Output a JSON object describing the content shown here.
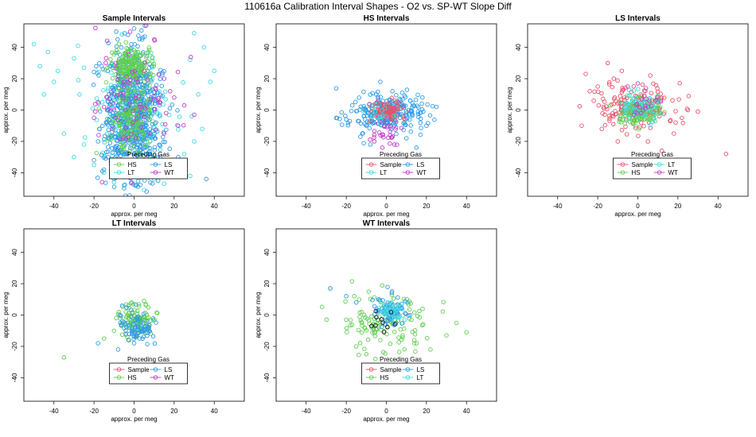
{
  "page_title": "110616a   Calibration Interval Shapes - O2 vs. SP-WT Slope Diff",
  "colors": {
    "Sample": "#e8536b",
    "HS": "#5fcf52",
    "LS": "#2f9be6",
    "LT": "#3fd9e3",
    "WT": "#c43cc9",
    "Other": "#111111"
  },
  "chart_data": [
    {
      "type": "scatter",
      "title": "Sample Intervals",
      "xlabel": "approx. per meg",
      "ylabel": "approx. per meg",
      "xlim": [
        -55,
        55
      ],
      "ylim": [
        -55,
        55
      ],
      "xticks": [
        -40,
        -20,
        0,
        20,
        40
      ],
      "yticks": [
        -40,
        -20,
        0,
        20,
        40
      ],
      "legend": {
        "title": "Preceding Gas",
        "position": "bottom-center",
        "entries": [
          "HS",
          "LS",
          "LT",
          "WT"
        ]
      },
      "series": [
        {
          "name": "LT",
          "center": [
            0,
            0
          ],
          "spread": [
            11,
            16
          ],
          "count": 160,
          "points": [
            [
              -50,
              42
            ],
            [
              -47,
              28
            ],
            [
              -43,
              37
            ],
            [
              -38,
              25
            ],
            [
              -30,
              33
            ],
            [
              -28,
              41
            ],
            [
              -25,
              27
            ],
            [
              -40,
              18
            ],
            [
              -45,
              10
            ],
            [
              -35,
              -15
            ],
            [
              -25,
              -22
            ],
            [
              -30,
              -30
            ],
            [
              -20,
              -35
            ],
            [
              -15,
              -40
            ],
            [
              -10,
              -46
            ],
            [
              30,
              49
            ],
            [
              35,
              40
            ],
            [
              28,
              32
            ],
            [
              40,
              25
            ],
            [
              38,
              18
            ],
            [
              32,
              10
            ],
            [
              34,
              -12
            ],
            [
              30,
              -20
            ],
            [
              25,
              -28
            ],
            [
              20,
              -35
            ],
            [
              28,
              -42
            ],
            [
              15,
              -47
            ],
            [
              -5,
              -48
            ],
            [
              5,
              -51
            ],
            [
              10,
              -44
            ]
          ]
        },
        {
          "name": "LS",
          "center": [
            -1,
            -3
          ],
          "spread": [
            7,
            22
          ],
          "count": 700,
          "points": [
            [
              -20,
              -32
            ],
            [
              -15,
              -38
            ],
            [
              -10,
              -44
            ],
            [
              -5,
              -50
            ],
            [
              5,
              -40
            ],
            [
              12,
              -45
            ],
            [
              20,
              -38
            ],
            [
              -8,
              -25
            ],
            [
              8,
              -28
            ],
            [
              0,
              52
            ],
            [
              -3,
              48
            ],
            [
              4,
              45
            ],
            [
              36,
              -44
            ],
            [
              -18,
              -20
            ],
            [
              22,
              -30
            ]
          ]
        },
        {
          "name": "HS",
          "center": [
            -1,
            28
          ],
          "spread": [
            5,
            6
          ],
          "count": 200,
          "points": []
        },
        {
          "name": "HS",
          "center": [
            -2,
            -6
          ],
          "spread": [
            5,
            10
          ],
          "count": 150,
          "points": []
        },
        {
          "name": "WT",
          "center": [
            0,
            5
          ],
          "spread": [
            10,
            20
          ],
          "count": 75,
          "points": [
            [
              -15,
              2
            ],
            [
              -12,
              7
            ],
            [
              -10,
              0
            ],
            [
              13,
              5
            ],
            [
              16,
              -2
            ],
            [
              18,
              12
            ],
            [
              15,
              20
            ],
            [
              20,
              8
            ],
            [
              -5,
              18
            ],
            [
              -8,
              22
            ],
            [
              5,
              25
            ],
            [
              25,
              3
            ],
            [
              -18,
              5
            ],
            [
              10,
              45
            ],
            [
              -2,
              50
            ],
            [
              6,
              54
            ],
            [
              -20,
              -5
            ],
            [
              30,
              -3
            ],
            [
              22,
              -10
            ],
            [
              15,
              -15
            ]
          ]
        }
      ]
    },
    {
      "type": "scatter",
      "title": "HS Intervals",
      "xlabel": "approx. per meg",
      "ylabel": "approx. per meg",
      "xlim": [
        -55,
        55
      ],
      "ylim": [
        -55,
        55
      ],
      "xticks": [
        -40,
        -20,
        0,
        20,
        40
      ],
      "yticks": [
        -40,
        -20,
        0,
        20,
        40
      ],
      "legend": {
        "title": "Preceding Gas",
        "position": "bottom-center",
        "entries": [
          "Sample",
          "LS",
          "LT",
          "WT"
        ]
      },
      "series": [
        {
          "name": "LS",
          "center": [
            0,
            -2
          ],
          "spread": [
            9,
            6
          ],
          "count": 260,
          "points": [
            [
              -20,
              -6
            ],
            [
              -17,
              3
            ],
            [
              -12,
              -15
            ],
            [
              -8,
              -22
            ],
            [
              10,
              -18
            ],
            [
              15,
              -24
            ],
            [
              20,
              -10
            ],
            [
              25,
              2
            ],
            [
              -3,
              18
            ],
            [
              3,
              12
            ],
            [
              -25,
              -5
            ],
            [
              18,
              8
            ]
          ]
        },
        {
          "name": "Sample",
          "center": [
            1,
            -1
          ],
          "spread": [
            4,
            3
          ],
          "count": 90,
          "points": []
        },
        {
          "name": "WT",
          "center": [
            0,
            -15
          ],
          "spread": [
            4,
            5
          ],
          "count": 28,
          "points": [
            [
              -2,
              -24
            ],
            [
              4,
              -22
            ],
            [
              -6,
              -20
            ]
          ]
        },
        {
          "name": "LT",
          "center": [
            -2,
            -1
          ],
          "spread": [
            4,
            3
          ],
          "count": 15,
          "points": []
        }
      ]
    },
    {
      "type": "scatter",
      "title": "LS Intervals",
      "xlabel": "approx. per meg",
      "ylabel": "approx. per meg",
      "xlim": [
        -55,
        55
      ],
      "ylim": [
        -55,
        55
      ],
      "xticks": [
        -40,
        -20,
        0,
        20,
        40
      ],
      "yticks": [
        -40,
        -20,
        0,
        20,
        40
      ],
      "legend": {
        "title": "Preceding Gas",
        "position": "bottom-center",
        "entries": [
          "Sample",
          "LT",
          "HS",
          "WT"
        ]
      },
      "series": [
        {
          "name": "Sample",
          "center": [
            -2,
            2
          ],
          "spread": [
            11,
            8
          ],
          "count": 150,
          "points": [
            [
              -26,
              23
            ],
            [
              -24,
              12
            ],
            [
              -22,
              6
            ],
            [
              -15,
              30
            ],
            [
              -12,
              20
            ],
            [
              -8,
              25
            ],
            [
              -28,
              -10
            ],
            [
              -18,
              -12
            ],
            [
              -10,
              -20
            ],
            [
              5,
              -20
            ],
            [
              12,
              -26
            ],
            [
              25,
              0
            ],
            [
              30,
              -1
            ],
            [
              22,
              -5
            ],
            [
              44,
              -28
            ],
            [
              18,
              -15
            ],
            [
              -20,
              15
            ]
          ]
        },
        {
          "name": "HS",
          "center": [
            1,
            -1
          ],
          "spread": [
            5,
            4
          ],
          "count": 150,
          "points": []
        },
        {
          "name": "LT",
          "center": [
            1,
            2
          ],
          "spread": [
            5,
            4
          ],
          "count": 60,
          "points": []
        },
        {
          "name": "WT",
          "center": [
            2,
            4
          ],
          "spread": [
            4,
            3
          ],
          "count": 20,
          "points": [
            [
              -5,
              15
            ],
            [
              0,
              17
            ],
            [
              4,
              14
            ]
          ]
        }
      ]
    },
    {
      "type": "scatter",
      "title": "LT Intervals",
      "xlabel": "approx. per meg",
      "ylabel": "approx. per meg",
      "xlim": [
        -55,
        55
      ],
      "ylim": [
        -55,
        55
      ],
      "xticks": [
        -40,
        -20,
        0,
        20,
        40
      ],
      "yticks": [
        -40,
        -20,
        0,
        20,
        40
      ],
      "legend": {
        "title": "Preceding Gas",
        "position": "bottom-center",
        "entries": [
          "Sample",
          "LS",
          "HS",
          "WT"
        ]
      },
      "series": [
        {
          "name": "HS",
          "center": [
            1,
            -3
          ],
          "spread": [
            5,
            5
          ],
          "count": 110,
          "points": [
            [
              -35,
              -27
            ],
            [
              -15,
              -15
            ],
            [
              -10,
              -10
            ]
          ]
        },
        {
          "name": "LS",
          "center": [
            1,
            -8
          ],
          "spread": [
            4,
            5
          ],
          "count": 85,
          "points": [
            [
              -18,
              -18
            ],
            [
              -8,
              -22
            ],
            [
              -6,
              6
            ],
            [
              0,
              -18
            ]
          ]
        }
      ]
    },
    {
      "type": "scatter",
      "title": "WT Intervals",
      "xlabel": "approx. per meg",
      "ylabel": "approx. per meg",
      "xlim": [
        -55,
        55
      ],
      "ylim": [
        -55,
        55
      ],
      "xticks": [
        -40,
        -20,
        0,
        20,
        40
      ],
      "yticks": [
        -40,
        -20,
        0,
        20,
        40
      ],
      "legend": {
        "title": "Preceding Gas",
        "position": "bottom-center",
        "entries": [
          "Sample",
          "LS",
          "HS",
          "LT"
        ]
      },
      "series": [
        {
          "name": "HS",
          "center": [
            0,
            -6
          ],
          "spread": [
            12,
            9
          ],
          "count": 130,
          "points": [
            [
              -28,
              17
            ],
            [
              -20,
              -3
            ],
            [
              -15,
              -20
            ],
            [
              -10,
              -25
            ],
            [
              22,
              -22
            ],
            [
              30,
              -13
            ],
            [
              40,
              -11
            ],
            [
              15,
              -18
            ],
            [
              -16,
              12
            ],
            [
              35,
              -5
            ]
          ]
        },
        {
          "name": "LS",
          "center": [
            2,
            2
          ],
          "spread": [
            4,
            5
          ],
          "count": 80,
          "points": [
            [
              -28,
              17
            ],
            [
              -20,
              12
            ],
            [
              -15,
              8
            ]
          ]
        },
        {
          "name": "LT",
          "center": [
            3,
            3
          ],
          "spread": [
            3,
            3
          ],
          "count": 35,
          "points": []
        },
        {
          "name": "Other",
          "center": [
            -3,
            -3
          ],
          "spread": [
            4,
            4
          ],
          "count": 10,
          "points": []
        }
      ]
    }
  ]
}
